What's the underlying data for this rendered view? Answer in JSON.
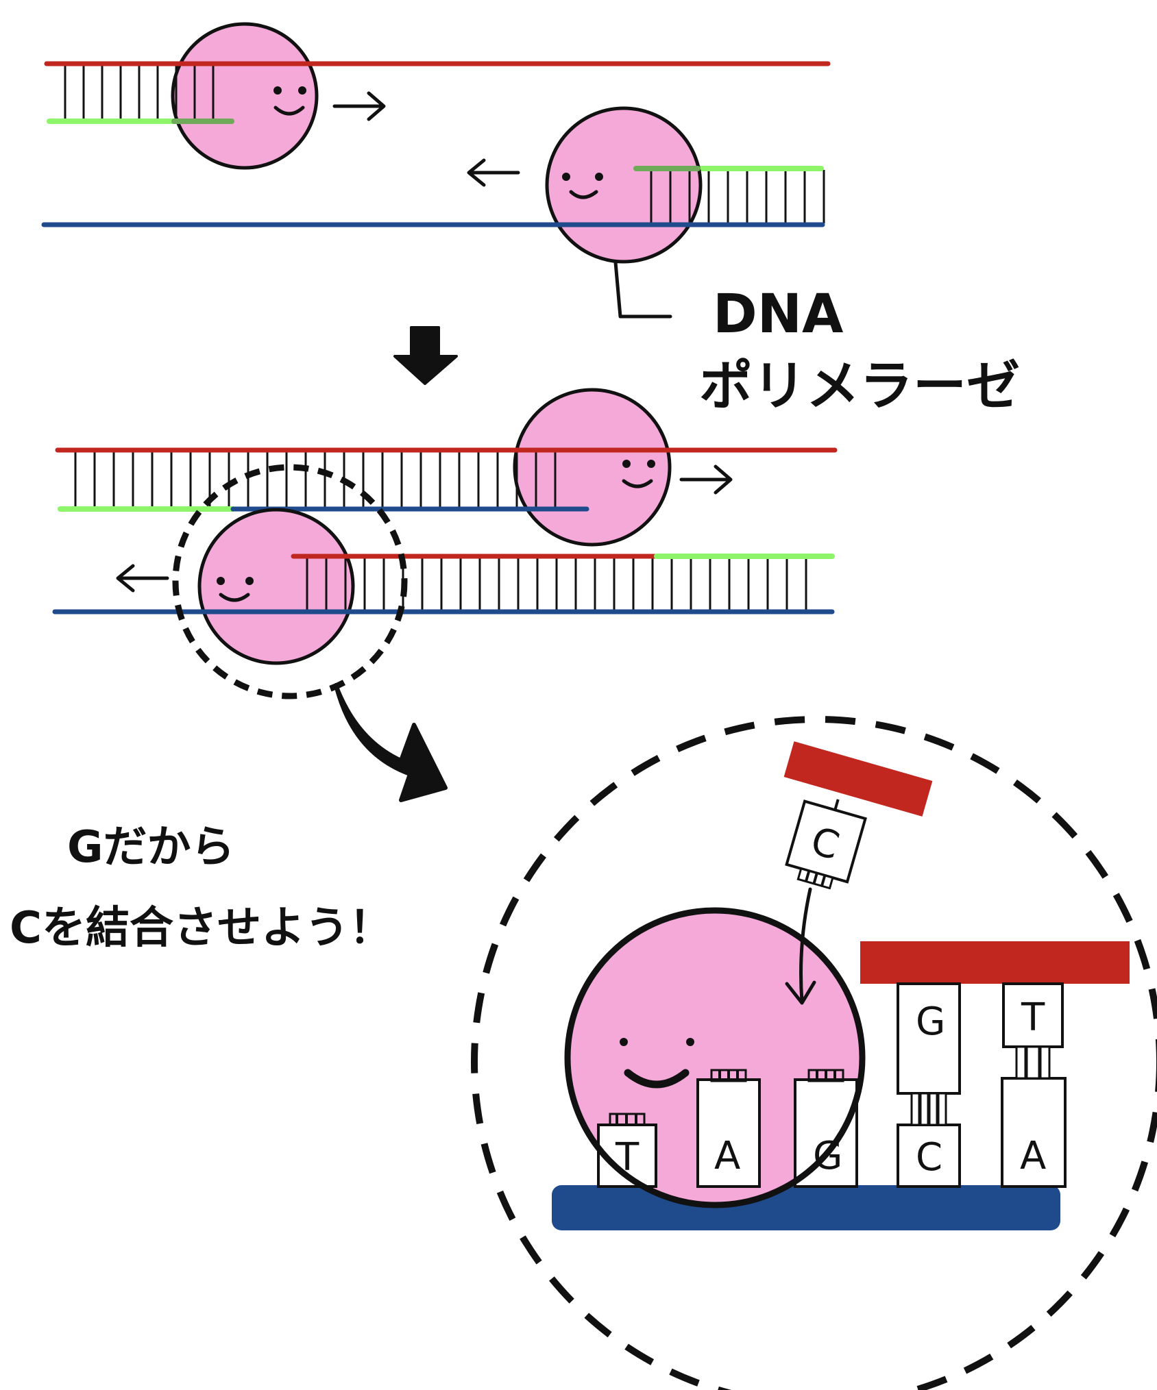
{
  "colors": {
    "template_strand": "#c1261f",
    "complement_strand": "#1f4a8c",
    "primer": "#8ef56a",
    "primer_overlap": "#6fa95a",
    "polymerase": "#f4a9d9",
    "outline": "#111111"
  },
  "label": {
    "line1": "DNA",
    "line2": "ポリメラーゼ"
  },
  "speech": {
    "line1": "Gだから",
    "line2": "Cを結合させよう！"
  },
  "bases": {
    "incoming": "C",
    "top_g": "G",
    "top_t": "T",
    "bottom": [
      "T",
      "A",
      "G",
      "C",
      "A"
    ]
  },
  "icons": {
    "down_arrow": "down-arrow-icon",
    "curved_arrow": "curved-arrow-icon",
    "face": "smiley-face-icon"
  }
}
